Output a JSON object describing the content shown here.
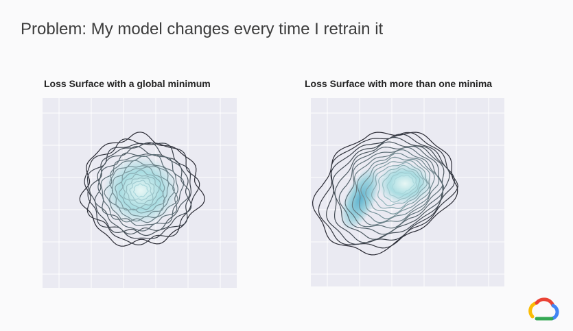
{
  "slide": {
    "title": "Problem: My model changes every time I retrain it",
    "panels": [
      {
        "title": "Loss Surface with a global minimum"
      },
      {
        "title": "Loss Surface with more than one minima"
      }
    ]
  }
}
